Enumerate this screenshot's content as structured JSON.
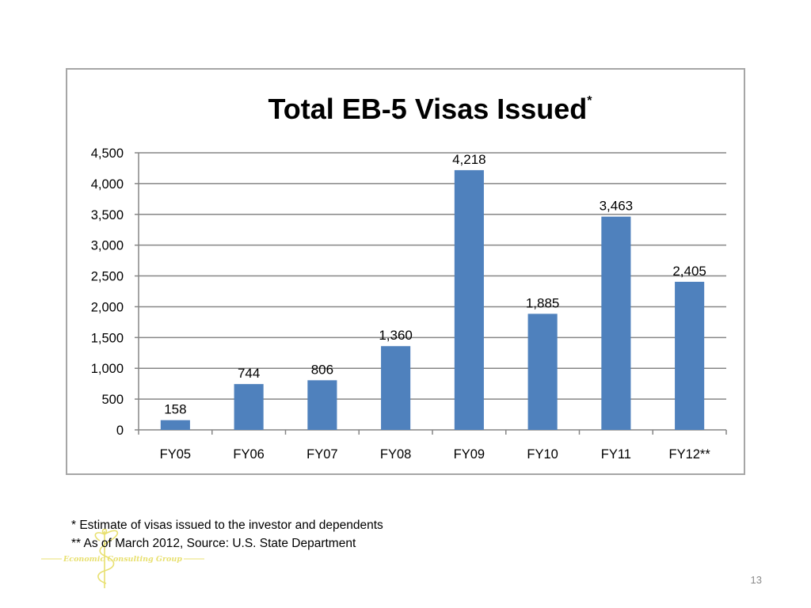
{
  "colors": {
    "bar": "#4f81bd",
    "grid": "#868686",
    "border": "#a6a6a6",
    "logo": "#e8e070"
  },
  "chart_data": {
    "type": "bar",
    "title": "Total EB-5 Visas Issued",
    "title_superscript": "*",
    "categories": [
      "FY05",
      "FY06",
      "FY07",
      "FY08",
      "FY09",
      "FY10",
      "FY11",
      "FY12**"
    ],
    "values": [
      158,
      744,
      806,
      1360,
      4218,
      1885,
      3463,
      2405
    ],
    "data_labels": [
      "158",
      "744",
      "806",
      "1,360",
      "4,218",
      "1,885",
      "3,463",
      "2,405"
    ],
    "yticks": [
      0,
      500,
      1000,
      1500,
      2000,
      2500,
      3000,
      3500,
      4000,
      4500
    ],
    "ytick_labels": [
      "0",
      "500",
      "1,000",
      "1,500",
      "2,000",
      "2,500",
      "3,000",
      "3,500",
      "4,000",
      "4,500"
    ],
    "ylim": [
      0,
      4500
    ],
    "xlabel": "",
    "ylabel": "",
    "grid": true,
    "legend": "none"
  },
  "footnotes": {
    "line1": "*   Estimate of visas issued to the investor and dependents",
    "line2": "** As of March 2012, Source: U.S. State Department"
  },
  "logo": {
    "text": "Economic Consulting Group",
    "icon": "caduceus-icon"
  },
  "page_number": "13"
}
